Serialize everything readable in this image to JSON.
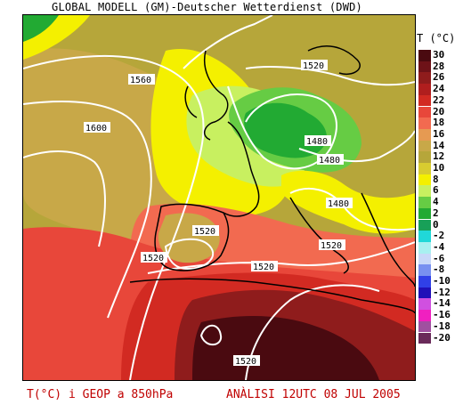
{
  "header": {
    "title": "GLOBAL MODELL (GM)-Deutscher Wetterdienst (DWD)"
  },
  "legend": {
    "title": "T (°C)",
    "entries": [
      {
        "label": "30",
        "color": "#4a0a10"
      },
      {
        "label": "28",
        "color": "#6e1218"
      },
      {
        "label": "26",
        "color": "#8f1c1c"
      },
      {
        "label": "24",
        "color": "#b01e1e"
      },
      {
        "label": "22",
        "color": "#d22a22"
      },
      {
        "label": "20",
        "color": "#e8473a"
      },
      {
        "label": "18",
        "color": "#f26a50"
      },
      {
        "label": "16",
        "color": "#e69a52"
      },
      {
        "label": "14",
        "color": "#c8a848"
      },
      {
        "label": "12",
        "color": "#b6a63a"
      },
      {
        "label": "10",
        "color": "#d8cc30"
      },
      {
        "label": "8",
        "color": "#f4f000"
      },
      {
        "label": "6",
        "color": "#c8f060"
      },
      {
        "label": "4",
        "color": "#66cc44"
      },
      {
        "label": "2",
        "color": "#22aa33"
      },
      {
        "label": "0",
        "color": "#18a058"
      },
      {
        "label": "-2",
        "color": "#20d8d8"
      },
      {
        "label": "-4",
        "color": "#a8f0f0"
      },
      {
        "label": "-6",
        "color": "#c8d8f8"
      },
      {
        "label": "-8",
        "color": "#7890f0"
      },
      {
        "label": "-10",
        "color": "#3040e8"
      },
      {
        "label": "-12",
        "color": "#2010b8"
      },
      {
        "label": "-14",
        "color": "#d050e0"
      },
      {
        "label": "-16",
        "color": "#f020c0"
      },
      {
        "label": "-18",
        "color": "#a050a0"
      },
      {
        "label": "-20",
        "color": "#6a2a5a"
      }
    ]
  },
  "contour_labels": [
    "1560",
    "1520",
    "1600",
    "1480",
    "1480",
    "1480",
    "1520",
    "1520",
    "1520",
    "1520",
    "1520"
  ],
  "footer": {
    "left": "T(°C) i GEOP a 850hPa",
    "right": "ANÀLISI 12UTC 08 JUL 2005"
  }
}
